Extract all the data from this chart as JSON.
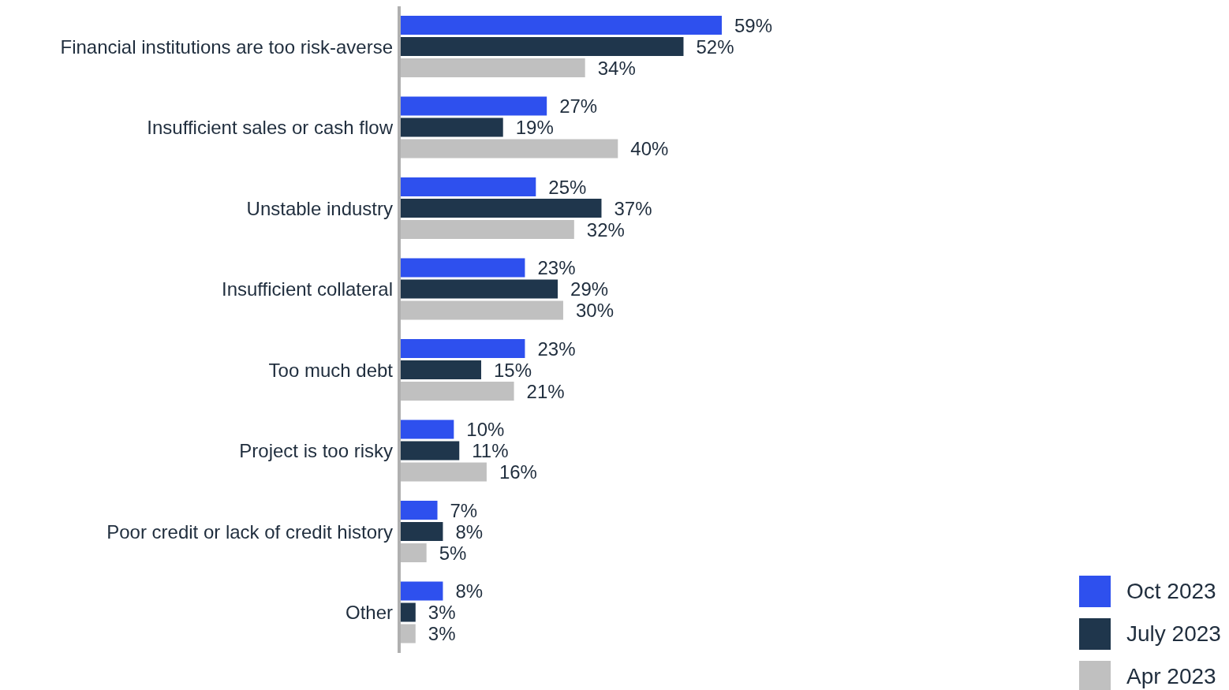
{
  "chart_data": {
    "type": "bar",
    "orientation": "horizontal",
    "categories": [
      "Financial institutions are too risk-averse",
      "Insufficient sales or cash flow",
      "Unstable industry",
      "Insufficient collateral",
      "Too much debt",
      "Project is too risky",
      "Poor credit or lack of credit history",
      "Other"
    ],
    "series": [
      {
        "name": "Oct 2023",
        "color": "#2e50ee",
        "values": [
          59,
          27,
          25,
          23,
          23,
          10,
          7,
          8
        ],
        "value_labels": [
          "59%",
          "27%",
          "25%",
          "23%",
          "23%",
          "10%",
          "7%",
          "8%"
        ]
      },
      {
        "name": "July 2023",
        "color": "#1f364c",
        "values": [
          52,
          19,
          37,
          29,
          15,
          11,
          8,
          3
        ],
        "value_labels": [
          "52%",
          "19%",
          "37%",
          "29%",
          "15%",
          "11%",
          "8%",
          "3%"
        ]
      },
      {
        "name": "Apr 2023",
        "color": "#c0c0c0",
        "values": [
          34,
          40,
          32,
          30,
          21,
          16,
          5,
          3
        ],
        "value_labels": [
          "34%",
          "40%",
          "32%",
          "30%",
          "21%",
          "16%",
          "5%",
          "3%"
        ]
      }
    ],
    "legend": "bottom right",
    "grid": false
  }
}
